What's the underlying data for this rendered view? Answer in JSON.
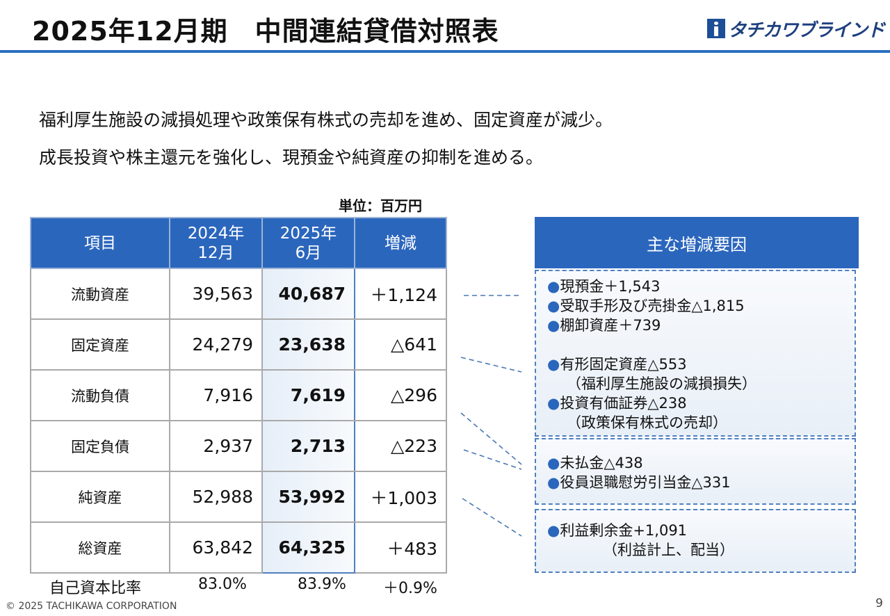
{
  "title": "2025年12月期　中間連結貸借対照表",
  "logo": {
    "mark": "info-i-icon",
    "text": "タチカワブラインド"
  },
  "lead": [
    "福利厚生施設の減損処理や政策保有株式の売却を進め、固定資産が減少。",
    "成長投資や株主還元を強化し、現預金や純資産の抑制を進める。"
  ],
  "unit": "単位：百万円",
  "table": {
    "headers": {
      "item": "項目",
      "prev_line1": "2024年",
      "prev_line2": "12月",
      "cur_line1": "2025年",
      "cur_line2": "6月",
      "diff": "増減"
    },
    "rows": [
      {
        "item": "流動資産",
        "prev": "39,563",
        "cur": "40,687",
        "diff": "＋1,124"
      },
      {
        "item": "固定資産",
        "prev": "24,279",
        "cur": "23,638",
        "diff": "△641"
      },
      {
        "item": "流動負債",
        "prev": "7,916",
        "cur": "7,619",
        "diff": "△296"
      },
      {
        "item": "固定負債",
        "prev": "2,937",
        "cur": "2,713",
        "diff": "△223"
      },
      {
        "item": "純資産",
        "prev": "52,988",
        "cur": "53,992",
        "diff": "＋1,003"
      },
      {
        "item": "総資産",
        "prev": "63,842",
        "cur": "64,325",
        "diff": "＋483"
      }
    ],
    "ratio": {
      "label": "自己資本比率",
      "prev": "83.0%",
      "cur": "83.9%",
      "diff": "＋0.9%"
    }
  },
  "factors": {
    "title": "主な増減要因",
    "box1": {
      "a1": "現預金＋1,543",
      "a2": "受取手形及び売掛金△1,815",
      "a3": "棚卸資産＋739",
      "b1": "有形固定資産△553",
      "b1_sub": "（福利厚生施設の減損損失）",
      "b2": "投資有価証券△238",
      "b2_sub": "（政策保有株式の売却）"
    },
    "box2": {
      "c1": "未払金△438",
      "c2": "役員退職慰労引当金△331"
    },
    "box3": {
      "d1": "利益剰余金+1,091",
      "d1_sub": "（利益計上、配当）"
    },
    "bullet": "●"
  },
  "footer": "© 2025 TACHIKAWA CORPORATION",
  "page": "9"
}
